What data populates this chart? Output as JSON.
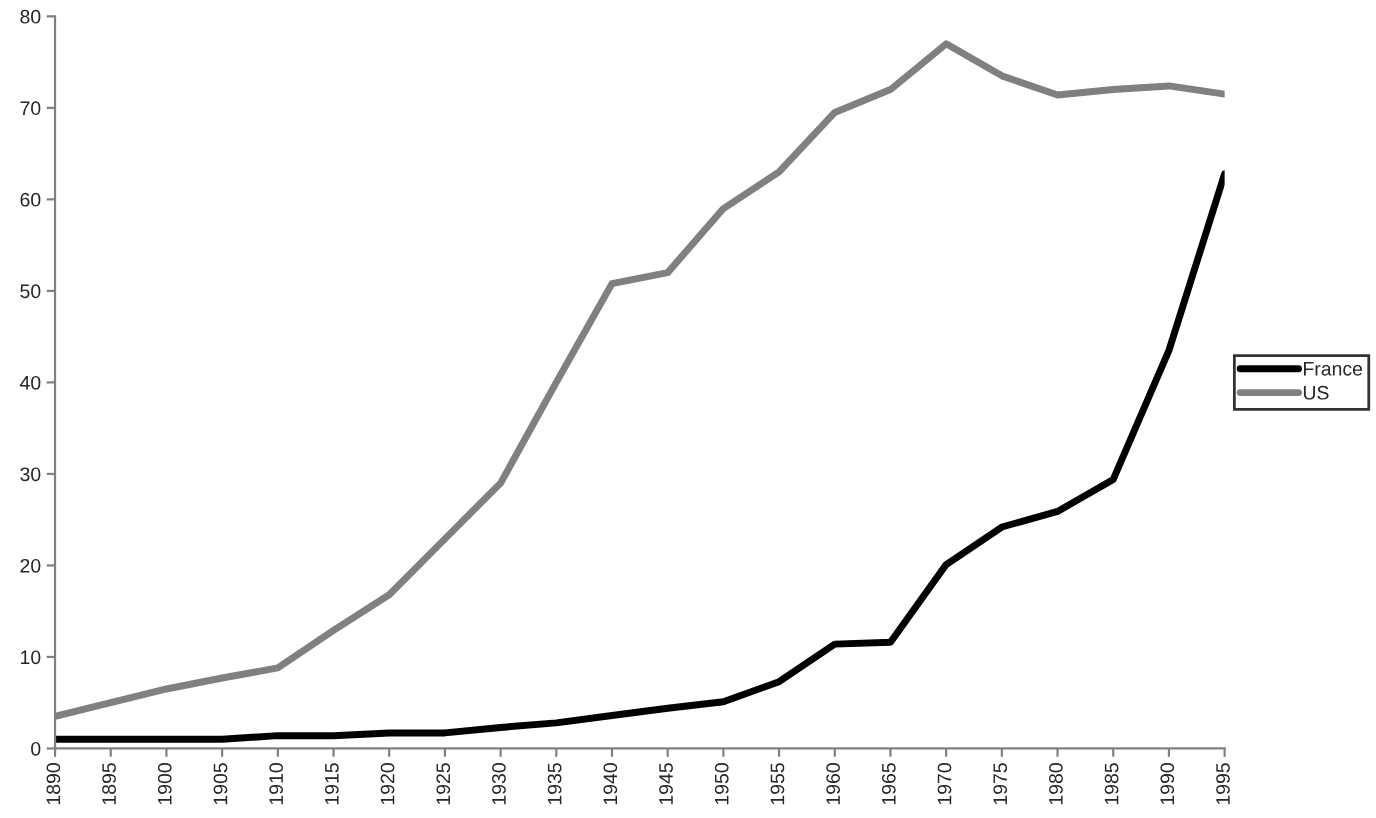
{
  "chart_data": {
    "type": "line",
    "x": [
      1890,
      1895,
      1900,
      1905,
      1910,
      1915,
      1920,
      1925,
      1930,
      1935,
      1940,
      1945,
      1950,
      1955,
      1960,
      1965,
      1970,
      1975,
      1980,
      1985,
      1990,
      1995
    ],
    "series": [
      {
        "name": "France",
        "color": "#000000",
        "values": [
          1,
          1,
          1,
          1,
          1.4,
          1.4,
          1.7,
          1.7,
          2.3,
          2.8,
          3.6,
          4.4,
          5.1,
          7.3,
          11.4,
          11.6,
          20.1,
          24.2,
          25.9,
          29.4,
          43.5,
          62.8
        ]
      },
      {
        "name": "US",
        "color": "#808080",
        "values": [
          3.5,
          5,
          6.5,
          7.7,
          8.8,
          12.9,
          16.8,
          22.9,
          29,
          40,
          50.8,
          52,
          59,
          63,
          69.5,
          72,
          77,
          73.5,
          71.4,
          72,
          72.4,
          71.5
        ]
      }
    ],
    "xlim": [
      1890,
      1995
    ],
    "xticks": [
      1890,
      1895,
      1900,
      1905,
      1910,
      1915,
      1920,
      1925,
      1930,
      1935,
      1940,
      1945,
      1950,
      1955,
      1960,
      1965,
      1970,
      1975,
      1980,
      1985,
      1990,
      1995
    ],
    "ylim": [
      0,
      80
    ],
    "yticks": [
      0,
      10,
      20,
      30,
      40,
      50,
      60,
      70,
      80
    ],
    "grid": false,
    "legend": "right",
    "marker": "none",
    "line_style": "solid"
  }
}
